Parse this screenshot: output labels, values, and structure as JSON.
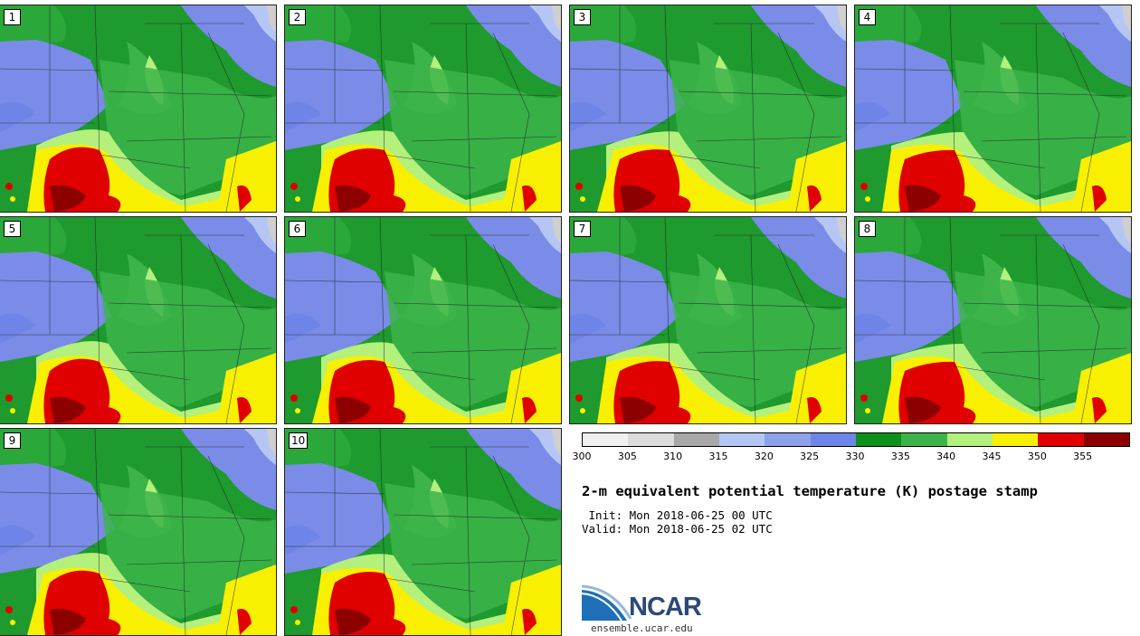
{
  "panels": [
    {
      "label": "1"
    },
    {
      "label": "2"
    },
    {
      "label": "3"
    },
    {
      "label": "4"
    },
    {
      "label": "5"
    },
    {
      "label": "6"
    },
    {
      "label": "7"
    },
    {
      "label": "8"
    },
    {
      "label": "9"
    },
    {
      "label": "10"
    }
  ],
  "colorbar": {
    "colors": [
      "#f0f0f0",
      "#dcdcdc",
      "#a8a8a8",
      "#b6c6f4",
      "#8ea2ec",
      "#6e84e6",
      "#0f8f1c",
      "#3cb44a",
      "#b4f07c",
      "#f8f000",
      "#e00000",
      "#8c0000"
    ],
    "tick_labels": [
      "300",
      "305",
      "310",
      "315",
      "320",
      "325",
      "330",
      "335",
      "340",
      "345",
      "350",
      "355"
    ]
  },
  "title": "2-m equivalent potential temperature (K) postage stamp",
  "init": " Init: Mon 2018-06-25 00 UTC",
  "valid": "Valid: Mon 2018-06-25 02 UTC",
  "logo": {
    "name": "NCAR",
    "url": "ensemble.ucar.edu"
  }
}
